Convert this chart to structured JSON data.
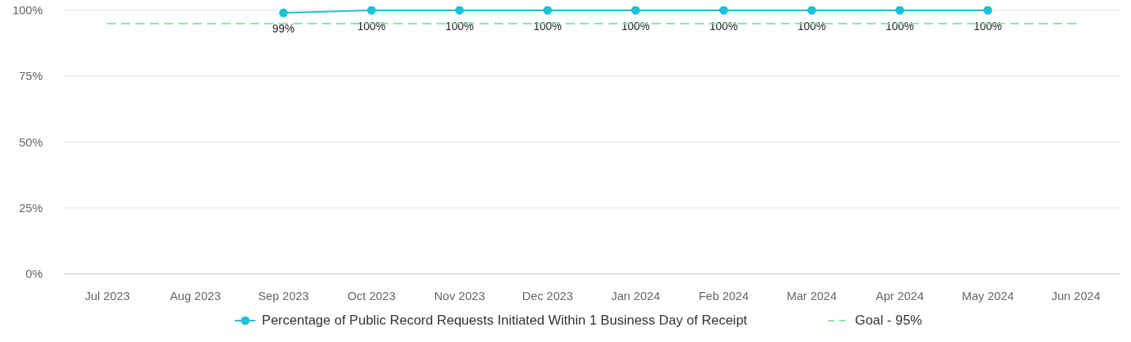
{
  "chart_data": {
    "type": "line",
    "categories": [
      "Jul 2023",
      "Aug 2023",
      "Sep 2023",
      "Oct 2023",
      "Nov 2023",
      "Dec 2023",
      "Jan 2024",
      "Feb 2024",
      "Mar 2024",
      "Apr 2024",
      "May 2024",
      "Jun 2024"
    ],
    "series": [
      {
        "name": "Percentage of Public Record Requests Initiated Within 1 Business Day of Receipt",
        "color": "#1ec1da",
        "marker": "circle",
        "line_style": "solid",
        "values": [
          null,
          null,
          99,
          100,
          100,
          100,
          100,
          100,
          100,
          100,
          100,
          null
        ],
        "value_labels": [
          null,
          null,
          "99%",
          "100%",
          "100%",
          "100%",
          "100%",
          "100%",
          "100%",
          "100%",
          "100%",
          null
        ]
      },
      {
        "name": "Goal - 95%",
        "color": "#86e3a6",
        "marker": "none",
        "line_style": "dashed",
        "values": [
          95,
          95,
          95,
          95,
          95,
          95,
          95,
          95,
          95,
          95,
          95,
          95
        ]
      }
    ],
    "ylim": [
      0,
      100
    ],
    "yticks": [
      {
        "value": 0,
        "label": "0%"
      },
      {
        "value": 25,
        "label": "25%"
      },
      {
        "value": 50,
        "label": "50%"
      },
      {
        "value": 75,
        "label": "75%"
      },
      {
        "value": 100,
        "label": "100%"
      }
    ],
    "grid": "y",
    "legend": "bottom"
  }
}
